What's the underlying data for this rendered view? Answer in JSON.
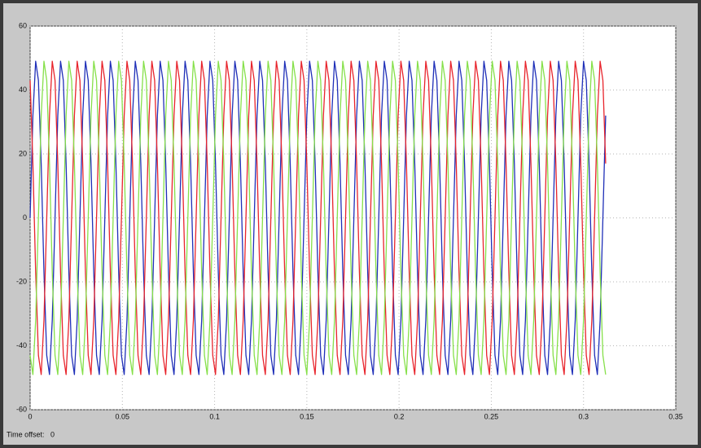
{
  "chart_data": {
    "type": "line",
    "time_offset_label": "Time offset:",
    "time_offset": 0,
    "xlim": [
      0,
      0.35
    ],
    "xticks": [
      0,
      0.05,
      0.1,
      0.15,
      0.2,
      0.25,
      0.3,
      0.35
    ],
    "ylim": [
      -60,
      60
    ],
    "yticks": [
      -60,
      -40,
      -20,
      0,
      20,
      40,
      60
    ],
    "grid": true,
    "x": [
      0,
      0.0015,
      0.003,
      0.0045,
      0.006,
      0.0075,
      0.009,
      0.0105,
      0.012,
      0.0135,
      0.015,
      0.0165,
      0.018,
      0.0195,
      0.021,
      0.0225,
      0.024,
      0.0255,
      0.027,
      0.0285,
      0.03,
      0.0315,
      0.033,
      0.0345,
      0.036,
      0.0375,
      0.039,
      0.0405,
      0.042,
      0.0435,
      0.045,
      0.0465,
      0.048,
      0.0495,
      0.051,
      0.0525,
      0.054,
      0.0555,
      0.057,
      0.0585,
      0.06,
      0.0615,
      0.063,
      0.0645,
      0.066,
      0.0675,
      0.069,
      0.0705,
      0.072,
      0.0735,
      0.075,
      0.0765,
      0.078,
      0.0795,
      0.081,
      0.0825,
      0.084,
      0.0855,
      0.087,
      0.0885,
      0.09,
      0.0915,
      0.093,
      0.0945,
      0.096,
      0.0975,
      0.099,
      0.1005,
      0.102,
      0.1035,
      0.105,
      0.1065,
      0.108,
      0.1095,
      0.111,
      0.1125,
      0.114,
      0.1155,
      0.117,
      0.1185,
      0.12,
      0.1215,
      0.123,
      0.1245,
      0.126,
      0.1275,
      0.129,
      0.1305,
      0.132,
      0.1335,
      0.135,
      0.1365,
      0.138,
      0.1395,
      0.141,
      0.1425,
      0.144,
      0.1455,
      0.147,
      0.1485,
      0.15,
      0.1515,
      0.153,
      0.1545,
      0.156,
      0.1575,
      0.159,
      0.1605,
      0.162,
      0.1635,
      0.165,
      0.1665,
      0.168,
      0.1695,
      0.171,
      0.1725,
      0.174,
      0.1755,
      0.177,
      0.1785,
      0.18,
      0.1815,
      0.183,
      0.1845,
      0.186,
      0.1875,
      0.189,
      0.1905,
      0.192,
      0.1935,
      0.195,
      0.1965,
      0.198,
      0.1995,
      0.201,
      0.2025,
      0.204,
      0.2055,
      0.207,
      0.2085,
      0.21,
      0.2115,
      0.213,
      0.2145,
      0.216,
      0.2175,
      0.219,
      0.2205,
      0.222,
      0.2235,
      0.225,
      0.2265,
      0.228,
      0.2295,
      0.231,
      0.2325,
      0.234,
      0.2355,
      0.237,
      0.2385,
      0.24,
      0.2415,
      0.243,
      0.2445,
      0.246,
      0.2475,
      0.249,
      0.2505,
      0.252,
      0.2535,
      0.255,
      0.2565,
      0.258,
      0.2595,
      0.261,
      0.2625,
      0.264,
      0.2655,
      0.267,
      0.2685,
      0.27,
      0.2715,
      0.273,
      0.2745,
      0.276,
      0.2775,
      0.279,
      0.2805,
      0.282,
      0.2835,
      0.285,
      0.2865,
      0.288,
      0.2895,
      0.291,
      0.2925,
      0.294,
      0.2955,
      0.297,
      0.2985,
      0.3,
      0.3015,
      0.303,
      0.3045,
      0.306,
      0.3075,
      0.309,
      0.3105,
      0.312
    ],
    "series": [
      {
        "color": "#1f2fb8",
        "values": [
          0,
          32,
          49,
          43,
          17,
          -17,
          -43,
          -49,
          -32,
          0,
          32,
          49,
          43,
          17,
          -17,
          -43,
          -49,
          -32,
          0,
          32,
          49,
          43,
          17,
          -17,
          -43,
          -49,
          -32,
          0,
          32,
          49,
          43,
          17,
          -17,
          -43,
          -49,
          -32,
          0,
          32,
          49,
          43,
          17,
          -17,
          -43,
          -49,
          -32,
          0,
          32,
          49,
          43,
          17,
          -17,
          -43,
          -49,
          -32,
          0,
          32,
          49,
          43,
          17,
          -17,
          -43,
          -49,
          -32,
          0,
          32,
          49,
          43,
          17,
          -17,
          -43,
          -49,
          -32,
          0,
          32,
          49,
          43,
          17,
          -17,
          -43,
          -49,
          -32,
          0,
          32,
          49,
          43,
          17,
          -17,
          -43,
          -49,
          -32,
          0,
          32,
          49,
          43,
          17,
          -17,
          -43,
          -49,
          -32,
          0,
          32,
          49,
          43,
          17,
          -17,
          -43,
          -49,
          -32,
          0,
          32,
          49,
          43,
          17,
          -17,
          -43,
          -49,
          -32,
          0,
          32,
          49,
          43,
          17,
          -17,
          -43,
          -49,
          -32,
          0,
          32,
          49,
          43,
          17,
          -17,
          -43,
          -49,
          -32,
          0,
          32,
          49,
          43,
          17,
          -17,
          -43,
          -49,
          -32,
          0,
          32,
          49,
          43,
          17,
          -17,
          -43,
          -49,
          -32,
          0,
          32,
          49,
          43,
          17,
          -17,
          -43,
          -49,
          -32,
          0,
          32,
          49,
          43,
          17,
          -17,
          -43,
          -49,
          -32,
          0,
          32,
          49,
          43,
          17,
          -17,
          -43,
          -49,
          -32,
          0,
          32,
          49,
          43,
          17,
          -17,
          -43,
          -49,
          -32,
          0,
          32,
          49,
          43,
          17,
          -17,
          -43,
          -49,
          -32,
          0,
          32,
          49,
          43,
          17,
          -17,
          -43,
          -49,
          -32,
          0,
          32
        ]
      },
      {
        "color": "#e8242c",
        "values": [
          43,
          17,
          -17,
          -43,
          -49,
          -32,
          0,
          32,
          49,
          43,
          17,
          -17,
          -43,
          -49,
          -32,
          0,
          32,
          49,
          43,
          17,
          -17,
          -43,
          -49,
          -32,
          0,
          32,
          49,
          43,
          17,
          -17,
          -43,
          -49,
          -32,
          0,
          32,
          49,
          43,
          17,
          -17,
          -43,
          -49,
          -32,
          0,
          32,
          49,
          43,
          17,
          -17,
          -43,
          -49,
          -32,
          0,
          32,
          49,
          43,
          17,
          -17,
          -43,
          -49,
          -32,
          0,
          32,
          49,
          43,
          17,
          -17,
          -43,
          -49,
          -32,
          0,
          32,
          49,
          43,
          17,
          -17,
          -43,
          -49,
          -32,
          0,
          32,
          49,
          43,
          17,
          -17,
          -43,
          -49,
          -32,
          0,
          32,
          49,
          43,
          17,
          -17,
          -43,
          -49,
          -32,
          0,
          32,
          49,
          43,
          17,
          -17,
          -43,
          -49,
          -32,
          0,
          32,
          49,
          43,
          17,
          -17,
          -43,
          -49,
          -32,
          0,
          32,
          49,
          43,
          17,
          -17,
          -43,
          -49,
          -32,
          0,
          32,
          49,
          43,
          17,
          -17,
          -43,
          -49,
          -32,
          0,
          32,
          49,
          43,
          17,
          -17,
          -43,
          -49,
          -32,
          0,
          32,
          49,
          43,
          17,
          -17,
          -43,
          -49,
          -32,
          0,
          32,
          49,
          43,
          17,
          -17,
          -43,
          -49,
          -32,
          0,
          32,
          49,
          43,
          17,
          -17,
          -43,
          -49,
          -32,
          0,
          32,
          49,
          43,
          17,
          -17,
          -43,
          -49,
          -32,
          0,
          32,
          49,
          43,
          17,
          -17,
          -43,
          -49,
          -32,
          0,
          32,
          49,
          43,
          17,
          -17,
          -43,
          -49,
          -32,
          0,
          32,
          49,
          43,
          17,
          -17,
          -43,
          -49,
          -32,
          0,
          32,
          49,
          43,
          17
        ]
      },
      {
        "color": "#86e04a",
        "values": [
          -43,
          -49,
          -32,
          0,
          32,
          49,
          43,
          17,
          -17,
          -43,
          -49,
          -32,
          0,
          32,
          49,
          43,
          17,
          -17,
          -43,
          -49,
          -32,
          0,
          32,
          49,
          43,
          17,
          -17,
          -43,
          -49,
          -32,
          0,
          32,
          49,
          43,
          17,
          -17,
          -43,
          -49,
          -32,
          0,
          32,
          49,
          43,
          17,
          -17,
          -43,
          -49,
          -32,
          0,
          32,
          49,
          43,
          17,
          -17,
          -43,
          -49,
          -32,
          0,
          32,
          49,
          43,
          17,
          -17,
          -43,
          -49,
          -32,
          0,
          32,
          49,
          43,
          17,
          -17,
          -43,
          -49,
          -32,
          0,
          32,
          49,
          43,
          17,
          -17,
          -43,
          -49,
          -32,
          0,
          32,
          49,
          43,
          17,
          -17,
          -43,
          -49,
          -32,
          0,
          32,
          49,
          43,
          17,
          -17,
          -43,
          -49,
          -32,
          0,
          32,
          49,
          43,
          17,
          -17,
          -43,
          -49,
          -32,
          0,
          32,
          49,
          43,
          17,
          -17,
          -43,
          -49,
          -32,
          0,
          32,
          49,
          43,
          17,
          -17,
          -43,
          -49,
          -32,
          0,
          32,
          49,
          43,
          17,
          -17,
          -43,
          -49,
          -32,
          0,
          32,
          49,
          43,
          17,
          -17,
          -43,
          -49,
          -32,
          0,
          32,
          49,
          43,
          17,
          -17,
          -43,
          -49,
          -32,
          0,
          32,
          49,
          43,
          17,
          -17,
          -43,
          -49,
          -32,
          0,
          32,
          49,
          43,
          17,
          -17,
          -43,
          -49,
          -32,
          0,
          32,
          49,
          43,
          17,
          -17,
          -43,
          -49,
          -32,
          0,
          32,
          49,
          43,
          17,
          -17,
          -43,
          -49,
          -32,
          0,
          32,
          49,
          43,
          17,
          -17,
          -43,
          -49,
          -32,
          0,
          32,
          49,
          43,
          17,
          -17,
          -43,
          -49
        ]
      }
    ]
  }
}
